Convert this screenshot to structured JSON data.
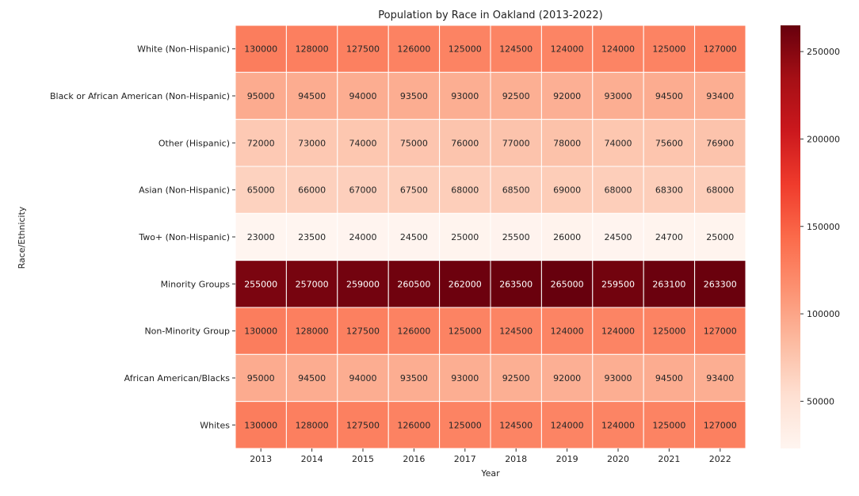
{
  "chart_data": {
    "type": "heatmap",
    "title": "Population by Race in Oakland (2013-2022)",
    "xlabel": "Year",
    "ylabel": "Race/Ethnicity",
    "x": [
      "2013",
      "2014",
      "2015",
      "2016",
      "2017",
      "2018",
      "2019",
      "2020",
      "2021",
      "2022"
    ],
    "y": [
      "White (Non-Hispanic)",
      "Black or African American (Non-Hispanic)",
      "Other (Hispanic)",
      "Asian (Non-Hispanic)",
      "Two+ (Non-Hispanic)",
      "Minority Groups",
      "Non-Minority Group",
      "African American/Blacks",
      "Whites"
    ],
    "values": [
      [
        130000,
        128000,
        127500,
        126000,
        125000,
        124500,
        124000,
        124000,
        125000,
        127000
      ],
      [
        95000,
        94500,
        94000,
        93500,
        93000,
        92500,
        92000,
        93000,
        94500,
        93400
      ],
      [
        72000,
        73000,
        74000,
        75000,
        76000,
        77000,
        78000,
        74000,
        75600,
        76900
      ],
      [
        65000,
        66000,
        67000,
        67500,
        68000,
        68500,
        69000,
        68000,
        68300,
        68000
      ],
      [
        23000,
        23500,
        24000,
        24500,
        25000,
        25500,
        26000,
        24500,
        24700,
        25000
      ],
      [
        255000,
        257000,
        259000,
        260500,
        262000,
        263500,
        265000,
        259500,
        263100,
        263300
      ],
      [
        130000,
        128000,
        127500,
        126000,
        125000,
        124500,
        124000,
        124000,
        125000,
        127000
      ],
      [
        95000,
        94500,
        94000,
        93500,
        93000,
        92500,
        92000,
        93000,
        94500,
        93400
      ],
      [
        130000,
        128000,
        127500,
        126000,
        125000,
        124500,
        124000,
        124000,
        125000,
        127000
      ]
    ],
    "colormap": "Reds",
    "colorbar": {
      "range": [
        23000,
        265000
      ],
      "ticks": [
        50000,
        100000,
        150000,
        200000,
        250000
      ],
      "tick_labels": [
        "50000",
        "100000",
        "150000",
        "200000",
        "250000"
      ]
    },
    "annotated": true
  }
}
